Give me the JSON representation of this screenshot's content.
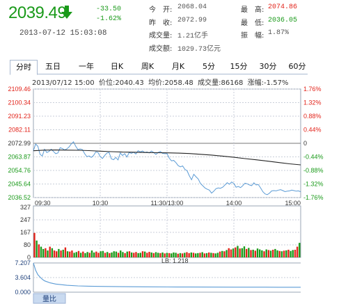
{
  "quote": {
    "price": "2039.49",
    "change": "-33.50",
    "change_pct": "-1.62%",
    "timestamp": "2013-07-12 15:03:08",
    "arrow_icon": "down-arrow-icon",
    "down_color": "#1a9a1a",
    "up_color": "#e2231a"
  },
  "info": [
    {
      "label": "今　开:",
      "value": "2068.04",
      "color": "gray"
    },
    {
      "label": "最　高:",
      "value": "2074.86",
      "color": "red"
    },
    {
      "label": "昨　收:",
      "value": "2072.99",
      "color": "gray"
    },
    {
      "label": "最　低:",
      "value": "2036.05",
      "color": "green"
    },
    {
      "label": "成交量:",
      "value": "1.21亿手",
      "color": "gray"
    },
    {
      "label": "振　幅:",
      "value": "1.87%",
      "color": "gray"
    },
    {
      "label": "成交额:",
      "value": "1029.73亿元",
      "color": "gray"
    }
  ],
  "tabs": [
    "分时",
    "五日",
    "一年",
    "日K",
    "周K",
    "月K",
    "5分",
    "15分",
    "30分",
    "60分"
  ],
  "active_tab": "分时",
  "status_line": "2013/07/12 15:00  价位:2040.43  均价:2058.48  成交量:86168  涨幅:-1.57%",
  "volume_label": "LB: 1.218",
  "ratio_tab": "量比",
  "chart_data": [
    {
      "type": "line",
      "x_ticks": [
        "09:30",
        "10:30",
        "11:30/13:00",
        "14:00",
        "15:00"
      ],
      "y_ticks_left": [
        "2109.46",
        "2100.34",
        "2091.23",
        "2082.11",
        "2072.99",
        "2063.87",
        "2054.76",
        "2045.64",
        "2036.52"
      ],
      "y_ticks_right": [
        "1.76%",
        "1.32%",
        "0.88%",
        "0.44%",
        "0",
        "-0.44%",
        "-0.88%",
        "-1.32%",
        "-1.76%"
      ],
      "ylim": [
        2036.52,
        2109.46
      ],
      "baseline": 2072.99,
      "series": [
        {
          "color": "#5b9bd5",
          "x": [
            0,
            2,
            4,
            6,
            8,
            10,
            12,
            14,
            16,
            18,
            20,
            22,
            24,
            26,
            28,
            30,
            32,
            34,
            36,
            38,
            40,
            42,
            44,
            46,
            48,
            50,
            52,
            54,
            56,
            58,
            60,
            62,
            64,
            66,
            68,
            70,
            72,
            74,
            76,
            78,
            80,
            82,
            84,
            86,
            88,
            90,
            92,
            94,
            96,
            98,
            100,
            102,
            104,
            106,
            108,
            110,
            112,
            114,
            116,
            118,
            120,
            122,
            124,
            126,
            128,
            130,
            132,
            134,
            136,
            138,
            140,
            142,
            144,
            146,
            148,
            150,
            152,
            154,
            156,
            158,
            160,
            162,
            164,
            166,
            168,
            170,
            172,
            174,
            176,
            178,
            180,
            182,
            184,
            186,
            188,
            190,
            192,
            194,
            196,
            198,
            200,
            202,
            204,
            206,
            208,
            210,
            212,
            214,
            216,
            218,
            220,
            222,
            224,
            226,
            228,
            230,
            232,
            234,
            236,
            238,
            240
          ],
          "y": [
            2068.0,
            2072.5,
            2071.0,
            2065.5,
            2064.5,
            2069.0,
            2066.8,
            2067.5,
            2069.0,
            2067.5,
            2066.0,
            2066.5,
            2070.0,
            2069.5,
            2068.5,
            2069.2,
            2070.5,
            2072.5,
            2074.0,
            2071.0,
            2068.8,
            2069.2,
            2068.8,
            2066.0,
            2064.0,
            2064.5,
            2063.5,
            2064.8,
            2067.2,
            2066.8,
            2064.0,
            2062.8,
            2064.8,
            2066.5,
            2066.8,
            2062.5,
            2062.0,
            2063.5,
            2061.8,
            2066.5,
            2064.8,
            2066.0,
            2063.8,
            2066.8,
            2066.2,
            2067.0,
            2065.8,
            2068.0,
            2067.2,
            2067.8,
            2066.8,
            2067.2,
            2066.5,
            2067.8,
            2066.8,
            2065.5,
            2066.8,
            2067.5,
            2066.2,
            2066.0,
            2066.0,
            2063.0,
            2061.2,
            2061.5,
            2060.0,
            2058.0,
            2057.2,
            2057.8,
            2055.5,
            2054.5,
            2051.2,
            2048.5,
            2052.2,
            2050.5,
            2049.0,
            2046.0,
            2044.5,
            2043.0,
            2042.2,
            2041.5,
            2039.5,
            2040.8,
            2042.5,
            2043.0,
            2042.8,
            2043.5,
            2045.0,
            2046.5,
            2045.5,
            2047.0,
            2046.0,
            2043.5,
            2044.0,
            2043.2,
            2044.5,
            2046.2,
            2045.8,
            2045.0,
            2044.5,
            2046.5,
            2045.0,
            2045.2,
            2043.0,
            2040.5,
            2039.0,
            2038.5,
            2039.5,
            2041.0,
            2041.2,
            2041.0,
            2041.5,
            2041.8,
            2041.2,
            2040.5,
            2040.8,
            2041.0,
            2041.5,
            2041.2,
            2040.8,
            2041.0,
            2040.43
          ]
        },
        {
          "color": "#222222",
          "x": [
            0,
            10,
            20,
            30,
            40,
            50,
            60,
            70,
            80,
            90,
            100,
            110,
            120,
            130,
            140,
            150,
            160,
            170,
            180,
            190,
            200,
            210,
            220,
            230,
            240
          ],
          "y": [
            2068.0,
            2068.4,
            2068.5,
            2068.4,
            2068.3,
            2068.1,
            2067.7,
            2067.4,
            2067.1,
            2067.0,
            2066.8,
            2066.7,
            2066.6,
            2066.4,
            2066.1,
            2065.6,
            2065.1,
            2064.4,
            2063.6,
            2062.7,
            2061.9,
            2061.0,
            2060.1,
            2059.2,
            2058.48
          ]
        }
      ]
    },
    {
      "type": "bar",
      "y_ticks": [
        "327",
        "247",
        "167",
        "80",
        "0"
      ],
      "ylim": [
        0,
        327
      ],
      "up_color": "#e2231a",
      "down_color": "#1a9a1a",
      "values": [
        160,
        110,
        85,
        70,
        55,
        60,
        45,
        70,
        60,
        45,
        40,
        55,
        45,
        50,
        65,
        40,
        38,
        45,
        30,
        35,
        42,
        30,
        38,
        28,
        35,
        30,
        45,
        32,
        38,
        30,
        40,
        42,
        30,
        35,
        28,
        32,
        40,
        38,
        30,
        45,
        35,
        28,
        38,
        40,
        32,
        30,
        35,
        28,
        30,
        40,
        38,
        30,
        36,
        32,
        28,
        34,
        30,
        28,
        32,
        26,
        30,
        28,
        26,
        32,
        30,
        24,
        28,
        26,
        30,
        34,
        28,
        32,
        30,
        26,
        28,
        30,
        34,
        26,
        28,
        32,
        30,
        28,
        26,
        30,
        38,
        42,
        40,
        48,
        60,
        52,
        58,
        65,
        75,
        58,
        60,
        72,
        55,
        62,
        48,
        50,
        44,
        58,
        52,
        46,
        40,
        52,
        48,
        44,
        50,
        55,
        46,
        42,
        40,
        44,
        46,
        50,
        42,
        48,
        50,
        70,
        95
      ],
      "colors": "rgrggrgrgrrgrgrgrrggrgrggrggrrggrgrgggrggrgrgrrggrgrrgrggrgrgrgggrgrgrrgrggrgrgrgrggrgrgrrgrgrggrgrgrgggrgrgrggrgrgrggr"
    },
    {
      "type": "line",
      "y_ticks": [
        "7.207",
        "3.604",
        "0.000"
      ],
      "ylim": [
        0,
        7.207
      ],
      "series": [
        {
          "color": "#5b9bd5",
          "x": [
            0,
            2,
            4,
            6,
            8,
            10,
            15,
            20,
            30,
            40,
            50,
            60,
            80,
            100,
            120,
            140,
            160,
            180,
            200,
            220,
            240
          ],
          "y": [
            7.2,
            5.4,
            4.3,
            3.7,
            3.2,
            2.8,
            2.3,
            2.0,
            1.7,
            1.55,
            1.48,
            1.42,
            1.36,
            1.32,
            1.29,
            1.27,
            1.25,
            1.24,
            1.23,
            1.22,
            1.218
          ]
        }
      ]
    }
  ]
}
